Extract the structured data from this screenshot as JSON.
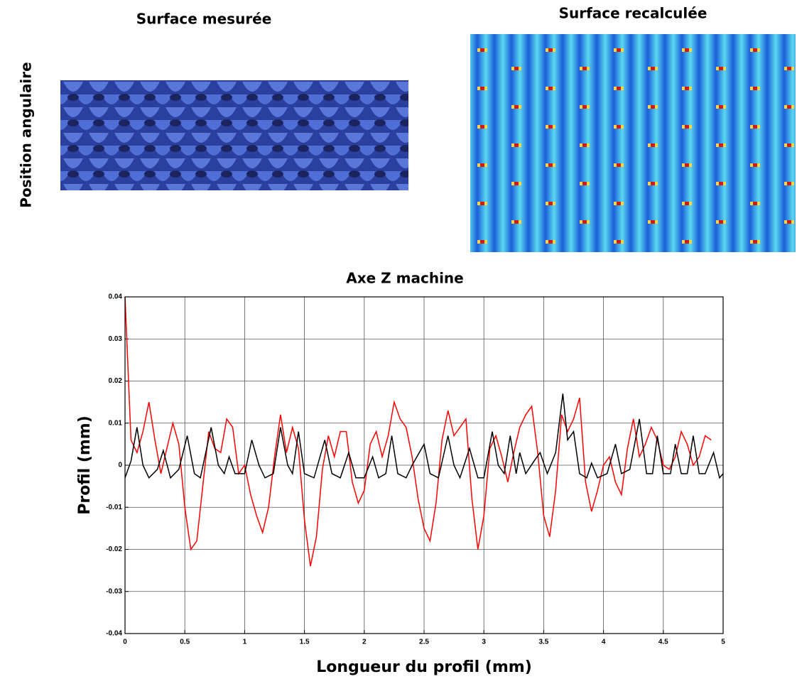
{
  "panels": {
    "measured_title": "Surface mesurée",
    "computed_title": "Surface recalculée",
    "side_label": "Position angulaire"
  },
  "chart_data": {
    "type": "line",
    "title": "Axe Z machine",
    "x_label": "Longueur du profil (mm)",
    "y_label": "Profil (mm)",
    "xlim": [
      0,
      5
    ],
    "ylim": [
      -0.04,
      0.04
    ],
    "xticks": [
      0,
      0.5,
      1,
      1.5,
      2,
      2.5,
      3,
      3.5,
      4,
      4.5,
      5
    ],
    "yticks": [
      -0.04,
      -0.03,
      -0.02,
      -0.01,
      0,
      0.01,
      0.02,
      0.03,
      0.04
    ],
    "grid": true,
    "series": [
      {
        "color": "#ff0000",
        "x": [
          0,
          0.05,
          0.1,
          0.15,
          0.2,
          0.25,
          0.3,
          0.35,
          0.4,
          0.45,
          0.5,
          0.55,
          0.6,
          0.65,
          0.7,
          0.75,
          0.8,
          0.85,
          0.9,
          0.95,
          1.0,
          1.05,
          1.1,
          1.15,
          1.2,
          1.25,
          1.3,
          1.35,
          1.4,
          1.45,
          1.5,
          1.55,
          1.6,
          1.65,
          1.7,
          1.75,
          1.8,
          1.85,
          1.9,
          1.95,
          2.0,
          2.05,
          2.1,
          2.15,
          2.2,
          2.25,
          2.3,
          2.35,
          2.4,
          2.45,
          2.5,
          2.55,
          2.6,
          2.65,
          2.7,
          2.75,
          2.8,
          2.85,
          2.9,
          2.95,
          3.0,
          3.05,
          3.1,
          3.15,
          3.2,
          3.25,
          3.3,
          3.35,
          3.4,
          3.45,
          3.5,
          3.55,
          3.6,
          3.65,
          3.7,
          3.75,
          3.8,
          3.85,
          3.9,
          3.95,
          4.0,
          4.05,
          4.1,
          4.15,
          4.2,
          4.25,
          4.3,
          4.35,
          4.4,
          4.45,
          4.5,
          4.55,
          4.6,
          4.65,
          4.7,
          4.75,
          4.8,
          4.85,
          4.9
        ],
        "values": [
          0.04,
          0.006,
          0.003,
          0.008,
          0.015,
          0.006,
          -0.002,
          0.004,
          0.01,
          0.005,
          -0.01,
          -0.02,
          -0.018,
          -0.005,
          0.008,
          0.004,
          0.003,
          0.011,
          0.009,
          -0.002,
          0.0,
          -0.007,
          -0.012,
          -0.016,
          -0.01,
          0.002,
          0.012,
          0.003,
          0.009,
          0.004,
          -0.013,
          -0.024,
          -0.017,
          -0.001,
          0.007,
          0.002,
          0.008,
          0.008,
          -0.004,
          -0.009,
          -0.006,
          0.005,
          0.008,
          0.002,
          0.007,
          0.015,
          0.011,
          0.009,
          0.002,
          -0.008,
          -0.015,
          -0.018,
          -0.009,
          0.006,
          0.013,
          0.007,
          0.009,
          0.011,
          -0.008,
          -0.02,
          -0.012,
          0.004,
          0.007,
          0.002,
          -0.004,
          0.003,
          0.009,
          0.012,
          0.014,
          0.003,
          -0.012,
          -0.017,
          -0.006,
          0.012,
          0.008,
          0.011,
          0.016,
          -0.004,
          -0.011,
          -0.006,
          0.0,
          0.002,
          -0.004,
          -0.007,
          0.004,
          0.011,
          0.002,
          0.005,
          0.009,
          0.006,
          0.0,
          -0.001,
          0.002,
          0.008,
          0.005,
          0.0,
          0.002,
          0.007,
          0.006
        ]
      },
      {
        "color": "#000000",
        "x": [
          0,
          0.05,
          0.1,
          0.15,
          0.2,
          0.27,
          0.32,
          0.38,
          0.45,
          0.52,
          0.58,
          0.63,
          0.72,
          0.78,
          0.83,
          0.87,
          0.92,
          1.0,
          1.06,
          1.12,
          1.17,
          1.24,
          1.3,
          1.36,
          1.4,
          1.45,
          1.5,
          1.58,
          1.67,
          1.73,
          1.8,
          1.87,
          1.93,
          2.0,
          2.07,
          2.12,
          2.18,
          2.23,
          2.28,
          2.35,
          2.4,
          2.5,
          2.55,
          2.62,
          2.7,
          2.75,
          2.8,
          2.88,
          2.95,
          3.0,
          3.07,
          3.12,
          3.17,
          3.22,
          3.27,
          3.3,
          3.35,
          3.42,
          3.47,
          3.53,
          3.6,
          3.66,
          3.7,
          3.75,
          3.8,
          3.86,
          3.9,
          3.95,
          4.03,
          4.1,
          4.15,
          4.22,
          4.3,
          4.36,
          4.41,
          4.45,
          4.5,
          4.56,
          4.6,
          4.65,
          4.7,
          4.75,
          4.8,
          4.85,
          4.92,
          4.97,
          5.0
        ],
        "values": [
          -0.003,
          0.001,
          0.009,
          0.0,
          -0.003,
          -0.001,
          0.0035,
          -0.003,
          -0.001,
          0.007,
          -0.002,
          -0.003,
          0.009,
          0.0,
          -0.002,
          0.002,
          -0.002,
          -0.002,
          0.006,
          0.0,
          -0.003,
          -0.002,
          0.009,
          0.0,
          -0.002,
          0.008,
          -0.002,
          -0.003,
          0.006,
          -0.002,
          -0.003,
          0.003,
          -0.003,
          -0.003,
          0.002,
          -0.003,
          -0.002,
          0.007,
          -0.002,
          -0.003,
          0.0,
          0.005,
          -0.002,
          -0.003,
          0.007,
          0.0,
          -0.003,
          0.004,
          -0.003,
          -0.003,
          0.008,
          0.0,
          -0.002,
          0.007,
          -0.002,
          0.003,
          -0.002,
          0.001,
          0.003,
          -0.002,
          0.003,
          0.017,
          0.006,
          0.008,
          -0.002,
          -0.003,
          0.0005,
          -0.003,
          -0.002,
          0.005,
          -0.002,
          -0.001,
          0.011,
          -0.002,
          -0.002,
          0.007,
          -0.002,
          -0.002,
          0.005,
          -0.002,
          -0.002,
          0.007,
          -0.002,
          -0.002,
          0.003,
          -0.003,
          -0.002
        ]
      }
    ]
  }
}
